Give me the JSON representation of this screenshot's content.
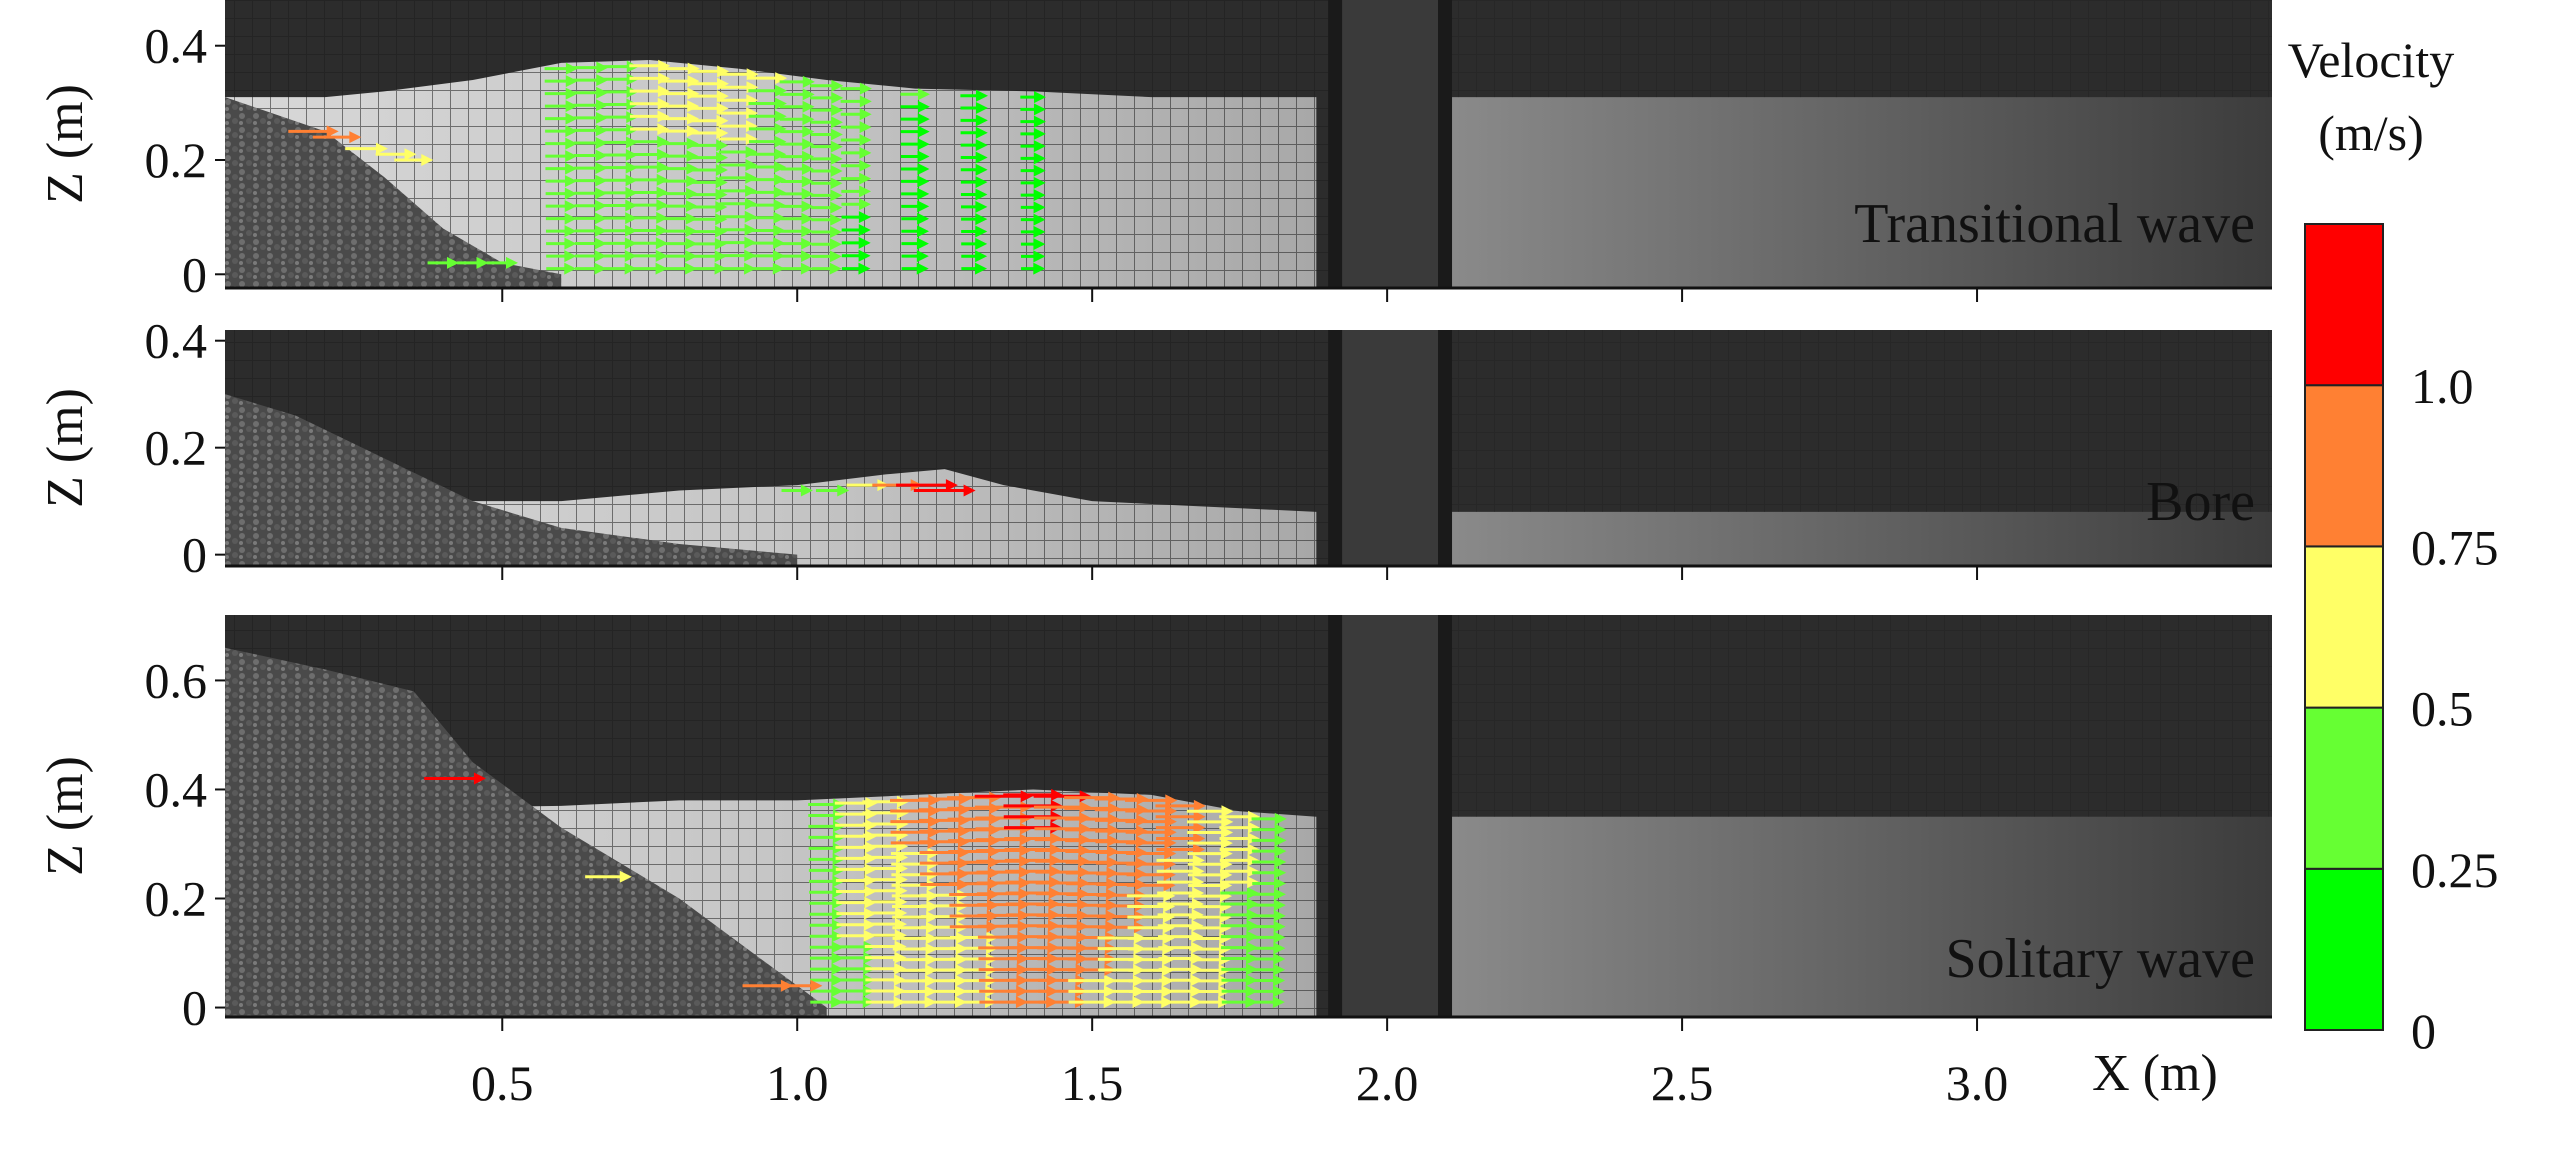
{
  "chart_data": {
    "type": "quiver",
    "xlabel": "X (m)",
    "x_ticks": [
      "0.5",
      "1.0",
      "1.5",
      "2.0",
      "2.5",
      "3.0"
    ],
    "x_tick_values": [
      0.5,
      1.0,
      1.5,
      2.0,
      2.5,
      3.0
    ],
    "xlim": [
      0.03,
      3.5
    ],
    "colorbar": {
      "title_line1": "Velocity",
      "title_line2": "(m/s)",
      "ticks": [
        "1.0",
        "0.75",
        "0.5",
        "0.25",
        "0"
      ],
      "levels": [
        {
          "from": 0,
          "to": 0.25,
          "color": "#00ff00"
        },
        {
          "from": 0.25,
          "to": 0.5,
          "color": "#66ff33"
        },
        {
          "from": 0.5,
          "to": 0.75,
          "color": "#ffff66"
        },
        {
          "from": 0.75,
          "to": 1.0,
          "color": "#ff8033"
        },
        {
          "from": 1.0,
          "to": 1.25,
          "color": "#ff0000"
        }
      ]
    },
    "panels": [
      {
        "label": "Transitional wave",
        "ylabel": "Z (m)",
        "yticks": [
          "0",
          "0.2",
          "0.4"
        ],
        "ytick_values": [
          0,
          0.2,
          0.4
        ],
        "ylim": [
          -0.01,
          0.48
        ],
        "surface": [
          [
            0.03,
            0.31
          ],
          [
            0.2,
            0.31
          ],
          [
            0.3,
            0.32
          ],
          [
            0.45,
            0.34
          ],
          [
            0.6,
            0.37
          ],
          [
            0.75,
            0.375
          ],
          [
            0.9,
            0.36
          ],
          [
            1.05,
            0.34
          ],
          [
            1.2,
            0.325
          ],
          [
            1.4,
            0.32
          ],
          [
            1.6,
            0.31
          ],
          [
            1.88,
            0.31
          ]
        ],
        "bed": [
          [
            0.03,
            0.31
          ],
          [
            0.2,
            0.25
          ],
          [
            0.3,
            0.17
          ],
          [
            0.4,
            0.08
          ],
          [
            0.5,
            0.02
          ],
          [
            0.6,
            0.0
          ]
        ],
        "column_x": [
          0.6,
          0.65,
          0.7,
          0.75,
          0.8,
          0.85,
          0.9,
          0.95,
          1.0,
          1.05,
          1.1,
          1.2,
          1.3,
          1.4
        ],
        "column_speed": [
          0.35,
          0.4,
          0.45,
          0.55,
          0.55,
          0.55,
          0.55,
          0.5,
          0.4,
          0.35,
          0.3,
          0.25,
          0.2,
          0.15
        ],
        "extra_arrows": [
          [
            0.18,
            0.25,
            0.8
          ],
          [
            0.22,
            0.24,
            0.75
          ],
          [
            0.27,
            0.22,
            0.6
          ],
          [
            0.32,
            0.21,
            0.55
          ],
          [
            0.35,
            0.2,
            0.5
          ],
          [
            0.4,
            0.02,
            0.3
          ],
          [
            0.45,
            0.02,
            0.3
          ],
          [
            0.5,
            0.02,
            0.3
          ]
        ]
      },
      {
        "label": "Bore",
        "ylabel": "Z (m)",
        "yticks": [
          "0",
          "0.2",
          "0.4"
        ],
        "ytick_values": [
          0,
          0.2,
          0.4
        ],
        "ylim": [
          -0.01,
          0.42
        ],
        "surface": [
          [
            0.03,
            0.1
          ],
          [
            0.6,
            0.1
          ],
          [
            0.8,
            0.12
          ],
          [
            1.0,
            0.13
          ],
          [
            1.15,
            0.15
          ],
          [
            1.25,
            0.16
          ],
          [
            1.35,
            0.13
          ],
          [
            1.5,
            0.1
          ],
          [
            1.88,
            0.08
          ]
        ],
        "bed": [
          [
            0.03,
            0.3
          ],
          [
            0.15,
            0.26
          ],
          [
            0.3,
            0.18
          ],
          [
            0.45,
            0.1
          ],
          [
            0.6,
            0.05
          ],
          [
            0.8,
            0.02
          ],
          [
            1.0,
            0.0
          ]
        ],
        "column_x": [],
        "column_speed": [],
        "extra_arrows": [
          [
            1.0,
            0.12,
            0.3
          ],
          [
            1.06,
            0.12,
            0.35
          ],
          [
            1.12,
            0.13,
            0.6
          ],
          [
            1.17,
            0.13,
            0.8
          ],
          [
            1.22,
            0.13,
            1.1
          ],
          [
            1.25,
            0.12,
            1.1
          ]
        ]
      },
      {
        "label": "Solitary wave",
        "ylabel": "Z (m)",
        "yticks": [
          "0",
          "0.2",
          "0.4",
          "0.6"
        ],
        "ytick_values": [
          0,
          0.2,
          0.4,
          0.6
        ],
        "ylim": [
          -0.01,
          0.72
        ],
        "surface": [
          [
            0.03,
            0.36
          ],
          [
            0.6,
            0.37
          ],
          [
            0.8,
            0.38
          ],
          [
            1.0,
            0.38
          ],
          [
            1.2,
            0.39
          ],
          [
            1.4,
            0.4
          ],
          [
            1.6,
            0.39
          ],
          [
            1.75,
            0.36
          ],
          [
            1.88,
            0.35
          ]
        ],
        "bed": [
          [
            0.03,
            0.66
          ],
          [
            0.2,
            0.62
          ],
          [
            0.35,
            0.58
          ],
          [
            0.45,
            0.45
          ],
          [
            0.6,
            0.33
          ],
          [
            0.8,
            0.2
          ],
          [
            0.95,
            0.08
          ],
          [
            1.05,
            0.0
          ]
        ],
        "column_x": [
          1.05,
          1.1,
          1.15,
          1.2,
          1.25,
          1.3,
          1.35,
          1.4,
          1.45,
          1.5,
          1.55,
          1.6,
          1.65,
          1.7,
          1.75,
          1.8
        ],
        "column_speed": [
          0.45,
          0.6,
          0.7,
          0.8,
          0.85,
          0.9,
          1.0,
          1.05,
          1.0,
          0.95,
          0.9,
          0.85,
          0.8,
          0.7,
          0.55,
          0.4
        ],
        "extra_arrows": [
          [
            0.42,
            0.42,
            1.1
          ],
          [
            0.68,
            0.24,
            0.7
          ],
          [
            0.95,
            0.04,
            0.8
          ],
          [
            1.0,
            0.04,
            0.8
          ]
        ]
      }
    ]
  }
}
